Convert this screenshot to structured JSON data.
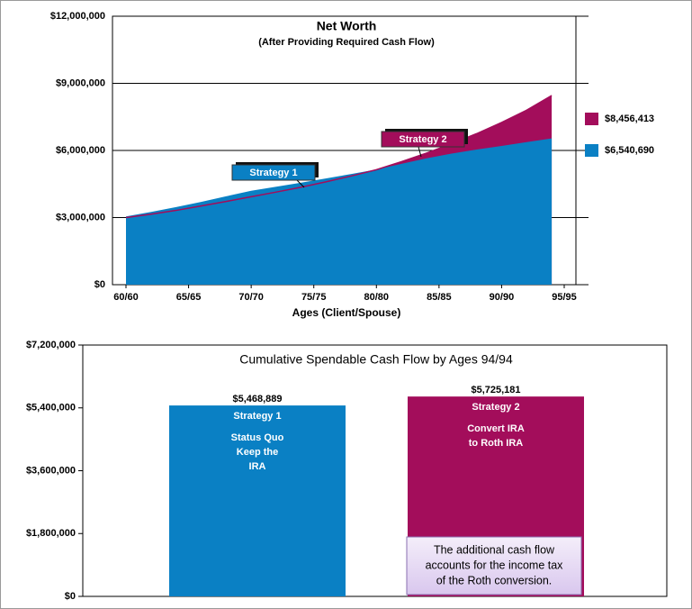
{
  "chart_data": [
    {
      "type": "area",
      "title": "Net Worth",
      "subtitle": "(After Providing Required Cash Flow)",
      "x_label": "Ages (Client/Spouse)",
      "x": [
        60,
        62,
        64,
        66,
        68,
        70,
        72,
        74,
        76,
        78,
        80,
        82,
        84,
        86,
        88,
        90,
        92,
        94
      ],
      "series": [
        {
          "name": "Strategy 2",
          "color": "#a30d5b",
          "values": [
            3000000,
            3150000,
            3320000,
            3520000,
            3720000,
            3930000,
            4140000,
            4360000,
            4600000,
            4860000,
            5140000,
            5500000,
            5880000,
            6300000,
            6750000,
            7250000,
            7800000,
            8456413
          ],
          "value_labels": [
            null,
            null,
            null,
            null,
            null,
            null,
            null,
            null,
            null,
            null,
            null,
            null,
            null,
            null,
            null,
            null,
            null,
            "$8,456,413"
          ]
        },
        {
          "name": "Strategy 1",
          "color": "#0a80c4",
          "values": [
            3050000,
            3250000,
            3470000,
            3700000,
            3950000,
            4200000,
            4380000,
            4560000,
            4750000,
            4950000,
            5150000,
            5400000,
            5650000,
            5860000,
            6040000,
            6200000,
            6370000,
            6540690
          ],
          "value_labels": [
            null,
            null,
            null,
            null,
            null,
            null,
            null,
            null,
            null,
            null,
            null,
            null,
            null,
            null,
            null,
            null,
            null,
            "$6,540,690"
          ]
        }
      ],
      "xlim": [
        60,
        95
      ],
      "xticks": [
        {
          "value": 60,
          "label": "60/60"
        },
        {
          "value": 65,
          "label": "65/65"
        },
        {
          "value": 70,
          "label": "70/70"
        },
        {
          "value": 75,
          "label": "75/75"
        },
        {
          "value": 80,
          "label": "80/80"
        },
        {
          "value": 85,
          "label": "85/85"
        },
        {
          "value": 90,
          "label": "90/90"
        },
        {
          "value": 95,
          "label": "95/95"
        }
      ],
      "ylim": [
        0,
        12000000
      ],
      "yticks": [
        {
          "value": 0,
          "label": "$0"
        },
        {
          "value": 3000000,
          "label": "$3,000,000"
        },
        {
          "value": 6000000,
          "label": "$6,000,000"
        },
        {
          "value": 9000000,
          "label": "$9,000,000"
        },
        {
          "value": 12000000,
          "label": "$12,000,000"
        }
      ],
      "grid": true
    },
    {
      "type": "bar",
      "title": "Cumulative Spendable Cash Flow by Ages 94/94",
      "categories": [
        "Strategy 1",
        "Strategy 2"
      ],
      "descriptions": [
        [
          "Status Quo",
          "Keep the",
          "IRA"
        ],
        [
          "Convert IRA",
          "to Roth IRA"
        ]
      ],
      "values": [
        5468889,
        5725181
      ],
      "value_labels": [
        "$5,468,889",
        "$5,725,181"
      ],
      "colors": [
        "#0a80c4",
        "#a30d5b"
      ],
      "ylim": [
        0,
        7200000
      ],
      "yticks": [
        {
          "value": 0,
          "label": "$0"
        },
        {
          "value": 1800000,
          "label": "$1,800,000"
        },
        {
          "value": 3600000,
          "label": "$3,600,000"
        },
        {
          "value": 5400000,
          "label": "$5,400,000"
        },
        {
          "value": 7200000,
          "label": "$7,200,000"
        }
      ],
      "note": [
        "The additional cash flow",
        "accounts for the income tax",
        "of the Roth conversion."
      ]
    }
  ]
}
